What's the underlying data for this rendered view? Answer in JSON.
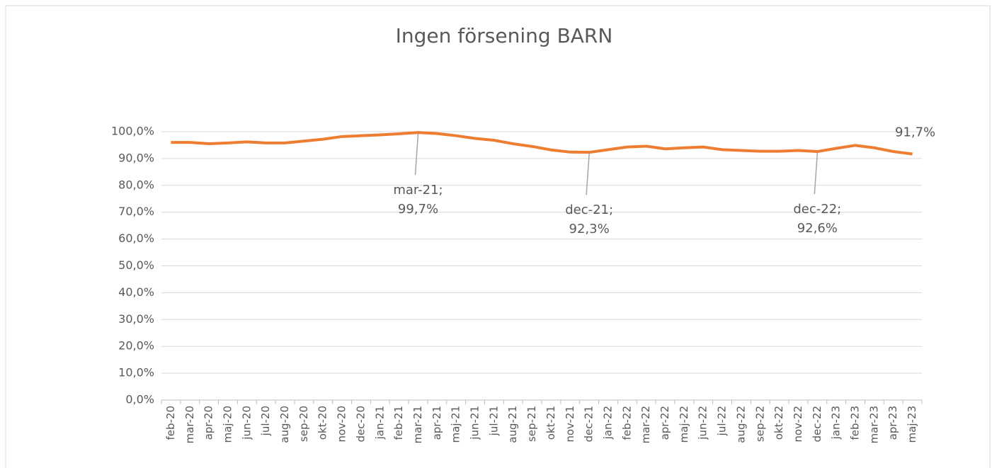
{
  "chart_data": {
    "type": "line",
    "title": "Ingen försening BARN",
    "categories": [
      "feb-20",
      "mar-20",
      "apr-20",
      "maj-20",
      "jun-20",
      "jul-20",
      "aug-20",
      "sep-20",
      "okt-20",
      "nov-20",
      "dec-20",
      "jan-21",
      "feb-21",
      "mar-21",
      "apr-21",
      "maj-21",
      "jun-21",
      "jul-21",
      "aug-21",
      "sep-21",
      "okt-21",
      "nov-21",
      "dec-21",
      "jan-22",
      "feb-22",
      "mar-22",
      "apr-22",
      "maj-22",
      "jun-22",
      "jul-22",
      "aug-22",
      "sep-22",
      "okt-22",
      "nov-22",
      "dec-22",
      "jan-23",
      "feb-23",
      "mar-23",
      "apr-23",
      "maj-23"
    ],
    "series": [
      {
        "name": "Ingen försening BARN",
        "color": "#ed7d31",
        "values": [
          96.0,
          96.0,
          95.5,
          95.8,
          96.2,
          95.8,
          95.8,
          96.5,
          97.2,
          98.2,
          98.5,
          98.8,
          99.2,
          99.7,
          99.3,
          98.5,
          97.5,
          96.8,
          95.5,
          94.5,
          93.2,
          92.4,
          92.3,
          93.3,
          94.3,
          94.6,
          93.6,
          94.0,
          94.3,
          93.3,
          93.0,
          92.7,
          92.7,
          93.0,
          92.6,
          93.8,
          94.9,
          94.0,
          92.6,
          91.7
        ],
        "value_labels": [
          null,
          null,
          null,
          null,
          null,
          null,
          null,
          null,
          null,
          null,
          null,
          null,
          null,
          "mar-21;\n99,7%",
          null,
          null,
          null,
          null,
          null,
          null,
          null,
          null,
          "dec-21;\n92,3%",
          null,
          null,
          null,
          null,
          null,
          null,
          null,
          null,
          null,
          null,
          null,
          "dec-22;\n92,6%",
          null,
          null,
          null,
          null,
          "91,7%"
        ]
      }
    ],
    "ylim": [
      0,
      100
    ],
    "yticks": [
      {
        "value": 0,
        "label": "0,0%"
      },
      {
        "value": 10,
        "label": "10,0%"
      },
      {
        "value": 20,
        "label": "20,0%"
      },
      {
        "value": 30,
        "label": "30,0%"
      },
      {
        "value": 40,
        "label": "40,0%"
      },
      {
        "value": 50,
        "label": "50,0%"
      },
      {
        "value": 60,
        "label": "60,0%"
      },
      {
        "value": 70,
        "label": "70,0%"
      },
      {
        "value": 80,
        "label": "80,0%"
      },
      {
        "value": 90,
        "label": "90,0%"
      },
      {
        "value": 100,
        "label": "100,0%"
      }
    ],
    "grid": true
  }
}
